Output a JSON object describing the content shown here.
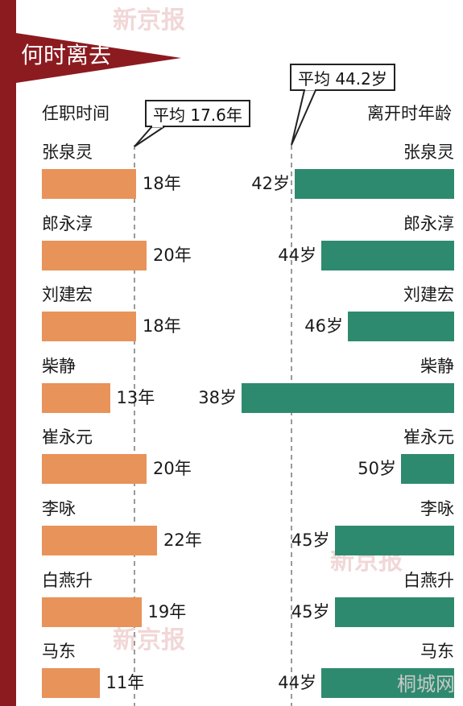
{
  "title": "何时离去",
  "left_header": "任职时间",
  "right_header": "离开时年龄",
  "left_avg_label": "平均  17.6年",
  "right_avg_label": "平均  44.2岁",
  "watermark_text": "新京报",
  "site_logo": "桐城网",
  "colors": {
    "tenure_bar": "#e8935a",
    "age_bar": "#2e8a6e",
    "side_bar": "#8c1b20",
    "banner": "#8c1b20"
  },
  "chart_data": {
    "type": "bar",
    "categories": [
      "张泉灵",
      "郎永淳",
      "刘建宏",
      "柴静",
      "崔永元",
      "李咏",
      "白燕升",
      "马东"
    ],
    "series": [
      {
        "name": "任职时间",
        "unit": "年",
        "values": [
          18,
          20,
          18,
          13,
          20,
          22,
          19,
          11
        ],
        "average": 17.6,
        "labels": [
          "18年",
          "20年",
          "18年",
          "13年",
          "20年",
          "22年",
          "19年",
          "11年"
        ]
      },
      {
        "name": "离开时年龄",
        "unit": "岁",
        "values": [
          42,
          44,
          46,
          38,
          50,
          45,
          45,
          44
        ],
        "average": 44.2,
        "labels": [
          "42岁",
          "44岁",
          "46岁",
          "38岁",
          "50岁",
          "45岁",
          "45岁",
          "44岁"
        ]
      }
    ]
  }
}
